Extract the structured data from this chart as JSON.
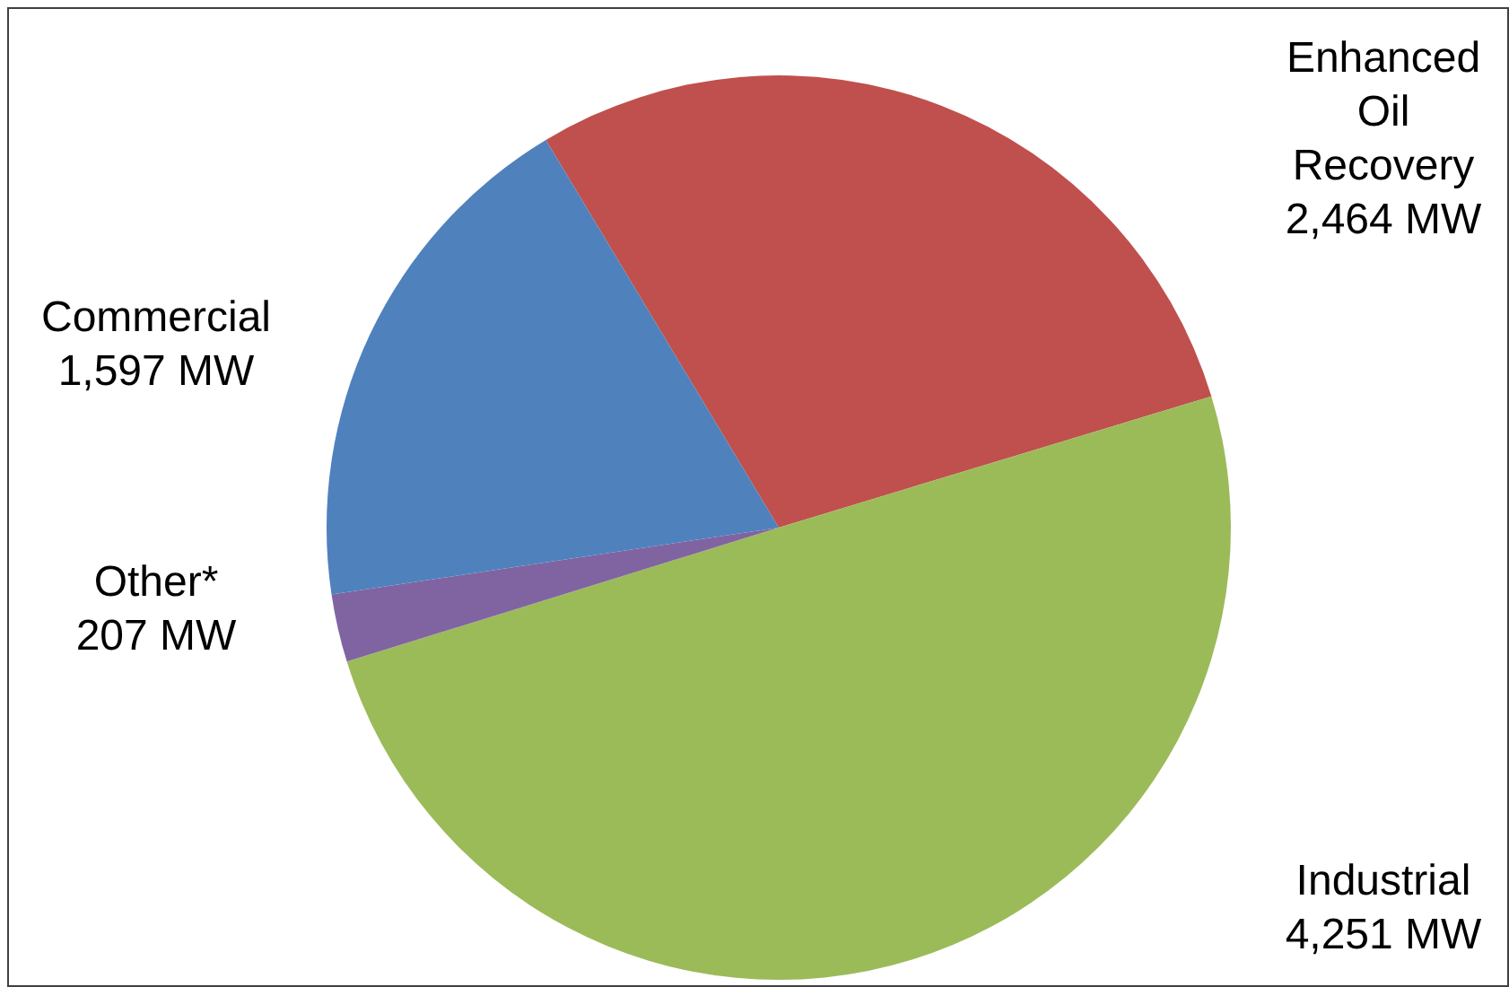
{
  "chart_data": {
    "type": "pie",
    "categories": [
      "Enhanced Oil Recovery",
      "Industrial",
      "Other*",
      "Commercial"
    ],
    "values": [
      2464,
      4251,
      207,
      1597
    ],
    "value_labels": [
      "2,464 MW",
      "4,251 MW",
      "207 MW",
      "1,597 MW"
    ],
    "colors": [
      "#c0504d",
      "#9bbb59",
      "#8064a2",
      "#4f81bd"
    ],
    "legend": false
  }
}
